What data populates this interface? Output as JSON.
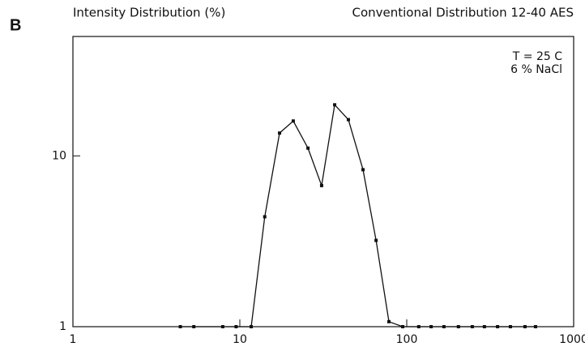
{
  "chart_data": {
    "type": "line",
    "panel_label": "B",
    "y_label": "Intensity Distribution (%)",
    "title": "Conventional Distribution 12-40 AES",
    "annotations": [
      "T = 25 C",
      "6 % NaCl"
    ],
    "x": [
      4.4,
      5.3,
      7.9,
      9.5,
      11.7,
      14.1,
      17.3,
      20.9,
      25.6,
      30.9,
      37.0,
      44.7,
      54.7,
      65.5,
      78.2,
      94.6,
      118,
      140,
      167,
      204,
      247,
      292,
      350,
      418,
      511,
      591
    ],
    "values": [
      1,
      1,
      1,
      1,
      1,
      4.4,
      13.6,
      16.0,
      11.1,
      6.7,
      19.9,
      16.3,
      8.3,
      3.2,
      1.07,
      1,
      1,
      1,
      1,
      1,
      1,
      1,
      1,
      1,
      1,
      1
    ],
    "color": "#111111",
    "xscale": "log",
    "yscale": "log",
    "xlim": [
      1,
      1000
    ],
    "ylim": [
      1,
      50
    ],
    "xticks": [
      1,
      10,
      100,
      1000
    ],
    "yticks": [
      1,
      10
    ]
  }
}
